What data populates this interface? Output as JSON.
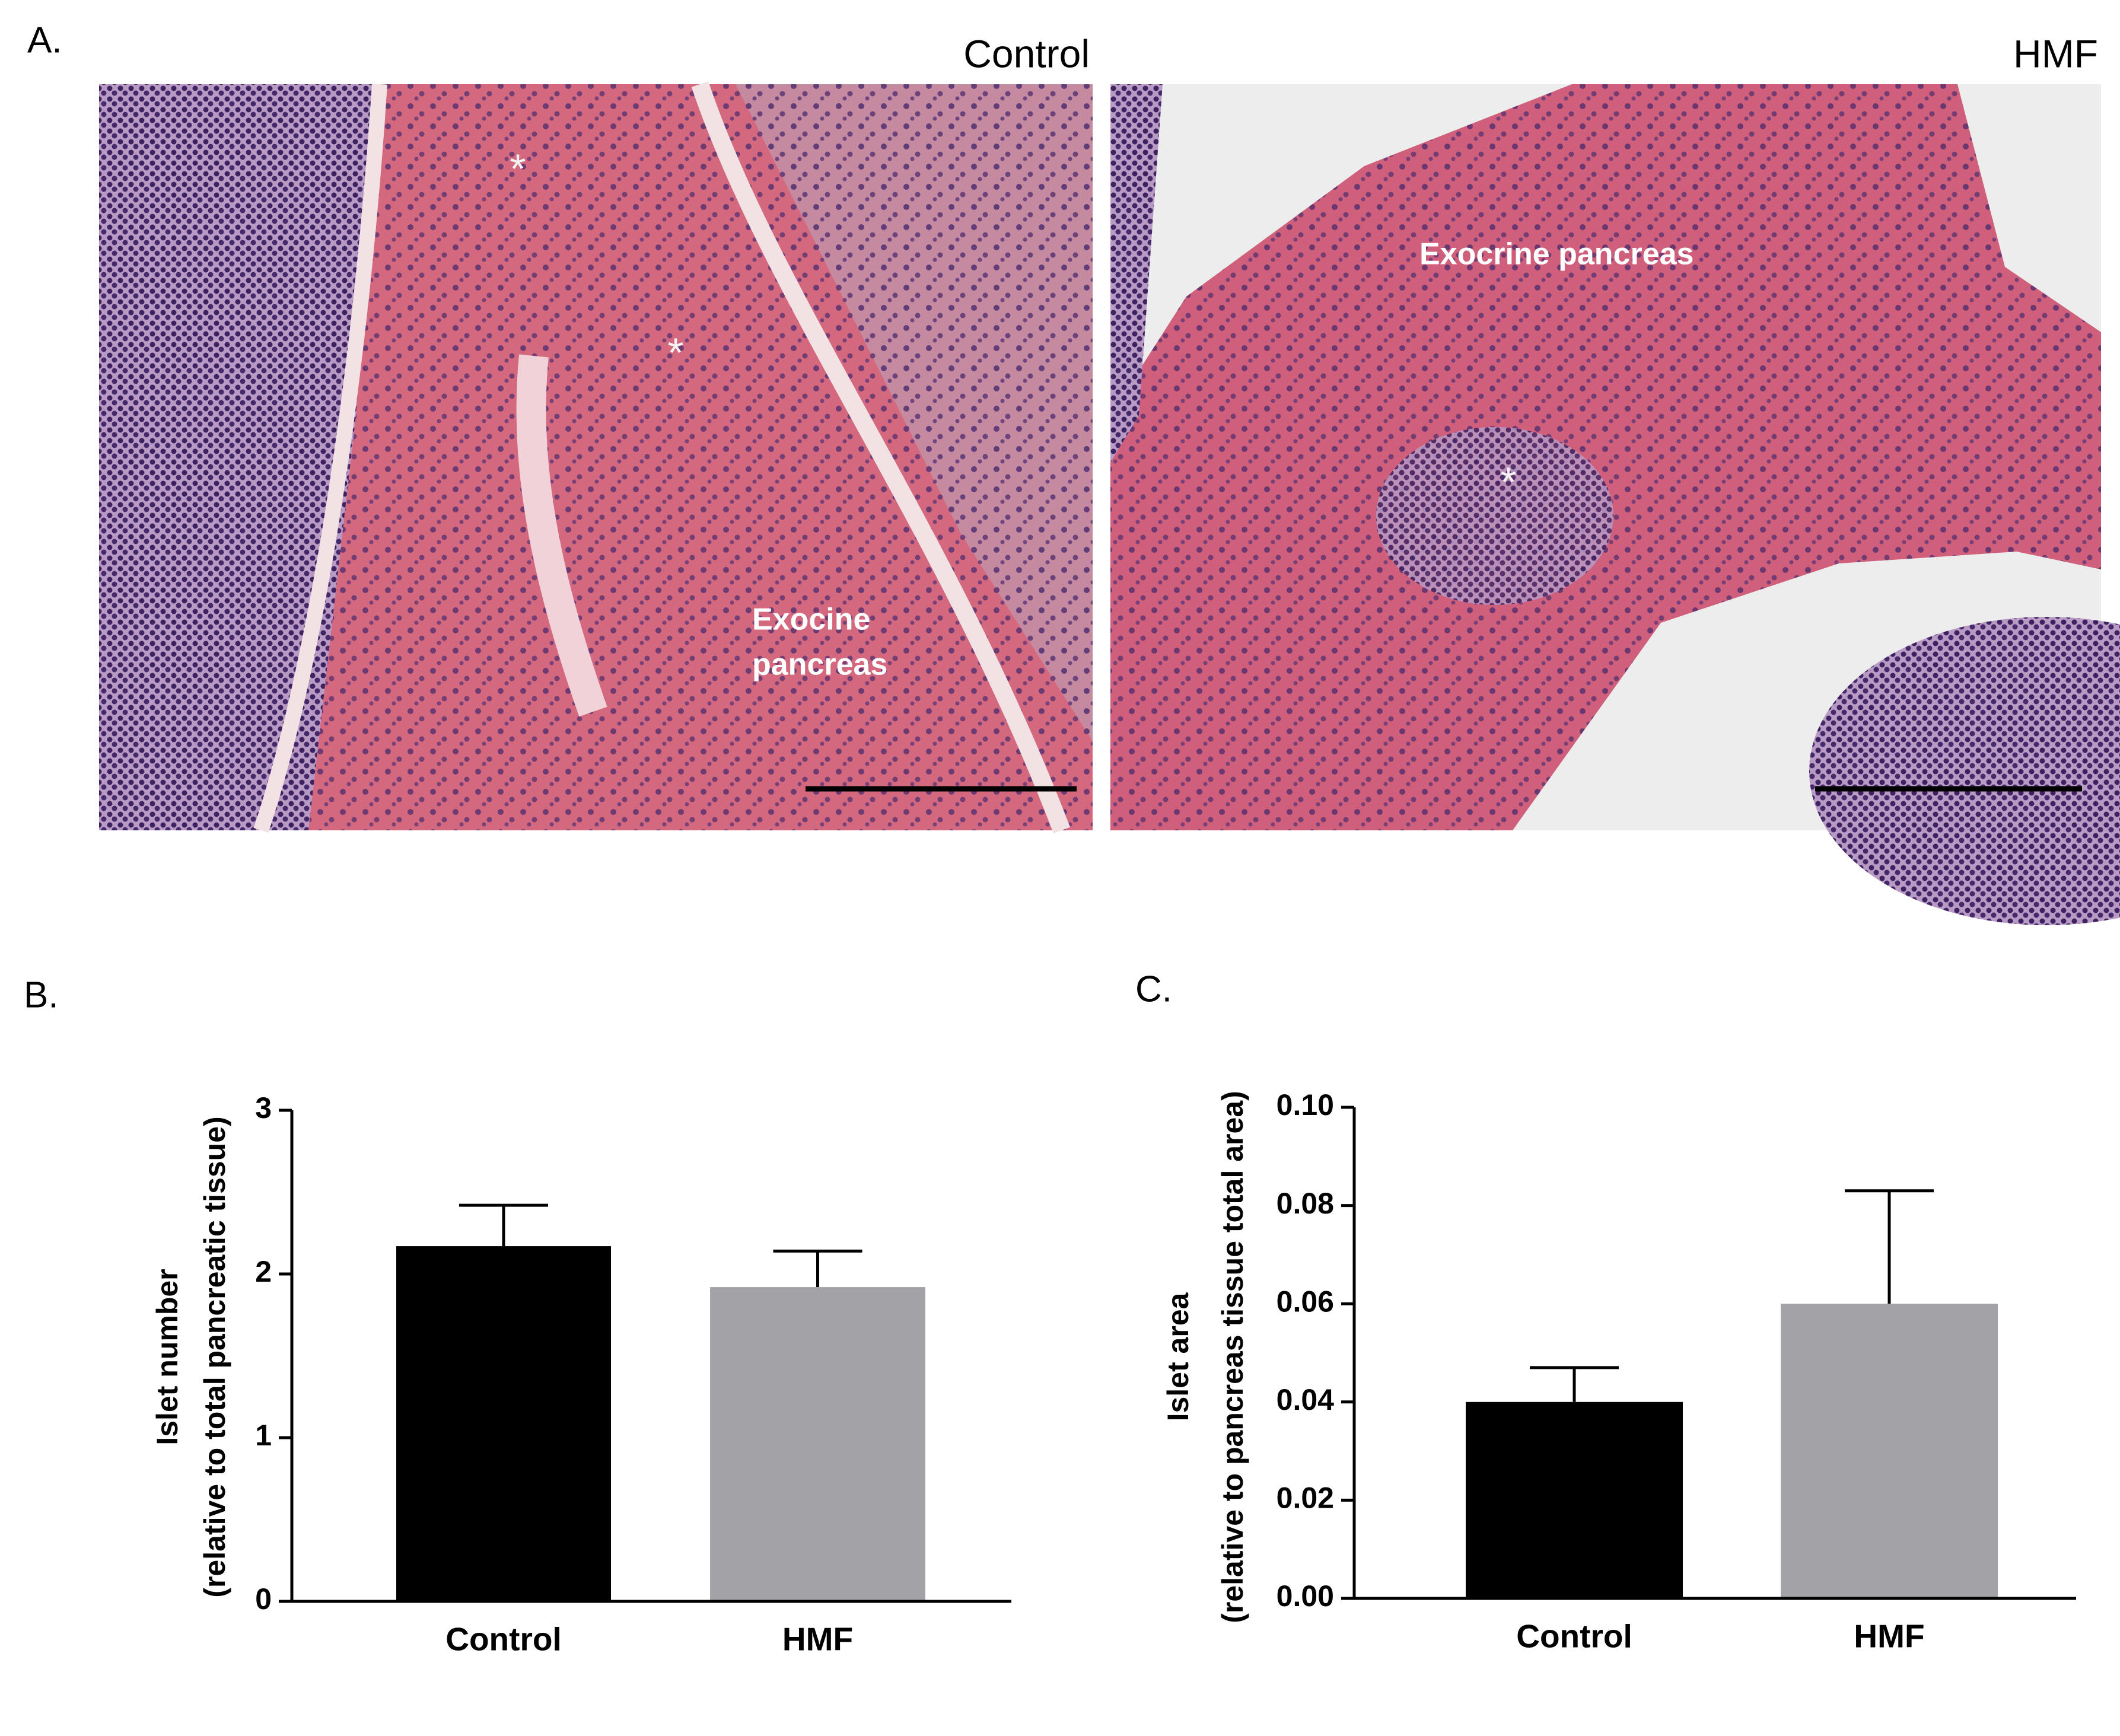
{
  "panel_labels": [
    "A.",
    "B.",
    "C."
  ],
  "micrographs": [
    {
      "title": "Control",
      "markers": [
        "*",
        "*"
      ],
      "label": [
        "Exocine",
        "pancreas"
      ]
    },
    {
      "title": "HMF",
      "markers": [
        "*"
      ],
      "label": [
        "Exocrine pancreas"
      ]
    }
  ],
  "chart_data": [
    {
      "type": "bar",
      "ylabel": [
        "Islet number",
        "(relative to total pancreatic tissue)"
      ],
      "categories": [
        "Control",
        "HMF"
      ],
      "values": [
        2.17,
        1.92
      ],
      "errors": [
        0.25,
        0.22
      ],
      "colors": [
        "#000000",
        "#a3a2a6"
      ],
      "ylim": [
        0,
        3
      ],
      "yticks": [
        0,
        1,
        2,
        3
      ]
    },
    {
      "type": "bar",
      "ylabel": [
        "Islet area",
        "(relative to pancreas tissue total area)"
      ],
      "categories": [
        "Control",
        "HMF"
      ],
      "values": [
        0.04,
        0.06
      ],
      "errors": [
        0.007,
        0.023
      ],
      "colors": [
        "#000000",
        "#a3a2a6"
      ],
      "ylim": [
        0,
        0.1
      ],
      "yticks": [
        {
          "value": 0,
          "label": "0.00"
        },
        0.02,
        0.04,
        0.06,
        0.08,
        {
          "value": 0.1,
          "label": "0.10"
        }
      ]
    }
  ]
}
